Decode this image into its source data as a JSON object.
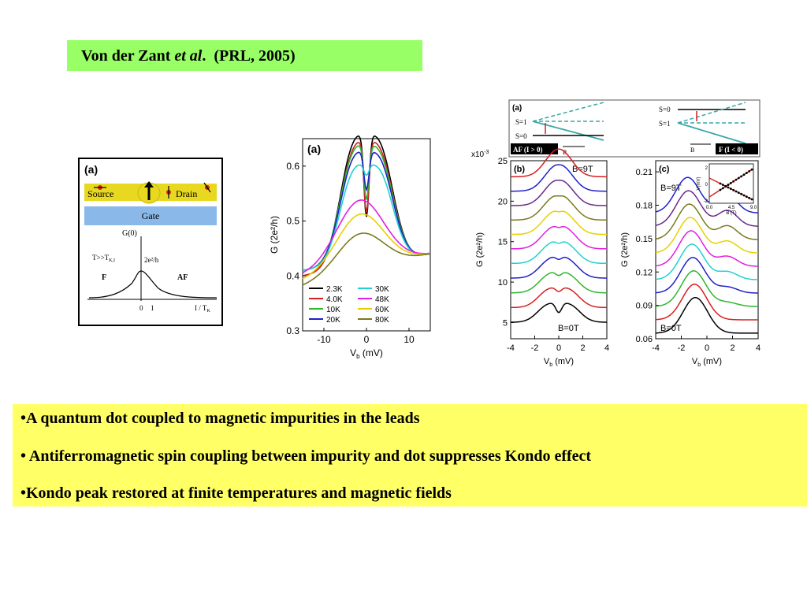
{
  "header": {
    "author": "Von der Zant",
    "etal": "et al",
    "period": ".",
    "citation": "(PRL, 2005)"
  },
  "fig1": {
    "panel": "(a)",
    "source": "Source",
    "drain": "Drain",
    "gate": "Gate",
    "g0": "G(0)",
    "cond": "T>>T",
    "cond_sub": "K,I",
    "peak": "2e²/h",
    "F": "F",
    "AF": "AF",
    "t0": "0",
    "t1": "1",
    "xlabel": "I / T",
    "xlabel_sub": "K"
  },
  "fig2": {
    "chart_data": {
      "type": "line",
      "title": "(a)",
      "xlabel": "V",
      "xlabel_sub": "b",
      "xlabel_unit": " (mV)",
      "ylabel": "G (2e²/h)",
      "xlim": [
        -15,
        15
      ],
      "ylim": [
        0.3,
        0.65
      ],
      "xticks": [
        "-10",
        "0",
        "10"
      ],
      "yticks": [
        "0.3",
        "0.4",
        "0.5",
        "0.6"
      ],
      "series": [
        {
          "name": "2.3K",
          "color": "#000000",
          "peak": 0.62,
          "dip": 0.47,
          "base": 0.4
        },
        {
          "name": "4.0K",
          "color": "#d62020",
          "peak": 0.61,
          "dip": 0.48,
          "base": 0.4
        },
        {
          "name": "10K",
          "color": "#2fb62f",
          "peak": 0.6,
          "dip": 0.5,
          "base": 0.41
        },
        {
          "name": "20K",
          "color": "#2020c8",
          "peak": 0.59,
          "dip": 0.52,
          "base": 0.41
        },
        {
          "name": "30K",
          "color": "#22d0d0",
          "peak": 0.57,
          "dip": 0.55,
          "base": 0.41
        },
        {
          "name": "48K",
          "color": "#e020e0",
          "peak": 0.54,
          "dip": 0.54,
          "base": 0.4
        },
        {
          "name": "60K",
          "color": "#e8d000",
          "peak": 0.52,
          "dip": 0.52,
          "base": 0.39
        },
        {
          "name": "80K",
          "color": "#7a7a1e",
          "peak": 0.49,
          "dip": 0.49,
          "base": 0.38
        }
      ]
    }
  },
  "fig3": {
    "schematic": {
      "panel": "(a)",
      "s1": "S=1",
      "s0": "S=0",
      "af": "AF (I > 0)",
      "f": "F (I < 0)",
      "b": "B"
    },
    "chart_data": [
      {
        "type": "line",
        "title": "(b)",
        "xlabel": "V",
        "xlabel_sub": "b",
        "xlabel_unit": " (mV)",
        "ylabel": "G (2e²/h)",
        "yexp": "x10",
        "yexp_sup": "-3",
        "xlim": [
          -4,
          4
        ],
        "ylim": [
          3,
          25
        ],
        "xticks": [
          "-4",
          "-2",
          "0",
          "2",
          "4"
        ],
        "yticks": [
          "5",
          "10",
          "15",
          "20",
          "25"
        ],
        "top_label": "B=9T",
        "bottom_label": "B=0T",
        "series": [
          {
            "color": "#000000",
            "offset": 5.0
          },
          {
            "color": "#d62020",
            "offset": 6.8
          },
          {
            "color": "#2fb62f",
            "offset": 8.6
          },
          {
            "color": "#2020c8",
            "offset": 10.4
          },
          {
            "color": "#22d0d0",
            "offset": 12.2
          },
          {
            "color": "#e020e0",
            "offset": 14.0
          },
          {
            "color": "#e8d000",
            "offset": 15.8
          },
          {
            "color": "#7a7a1e",
            "offset": 17.6
          },
          {
            "color": "#6a2a8a",
            "offset": 19.4
          },
          {
            "color": "#2020c8",
            "offset": 21.2
          },
          {
            "color": "#d62020",
            "offset": 23.0
          }
        ]
      },
      {
        "type": "line",
        "title": "(c)",
        "xlabel": "V",
        "xlabel_sub": "b",
        "xlabel_unit": " (mV)",
        "ylabel": "G (2e²/h)",
        "xlim": [
          -4,
          4
        ],
        "ylim": [
          0.06,
          0.22
        ],
        "xticks": [
          "-4",
          "-2",
          "0",
          "2",
          "4"
        ],
        "yticks": [
          "0.06",
          "0.09",
          "0.12",
          "0.15",
          "0.18",
          "0.21"
        ],
        "top_label": "B=9T",
        "bottom_label": "B=0T",
        "series": [
          {
            "color": "#000000",
            "offset": 0.065
          },
          {
            "color": "#d62020",
            "offset": 0.077
          },
          {
            "color": "#2fb62f",
            "offset": 0.089
          },
          {
            "color": "#2020c8",
            "offset": 0.101
          },
          {
            "color": "#22d0d0",
            "offset": 0.113
          },
          {
            "color": "#e020e0",
            "offset": 0.125
          },
          {
            "color": "#e8d000",
            "offset": 0.137
          },
          {
            "color": "#7a7a1e",
            "offset": 0.149
          },
          {
            "color": "#6a2a8a",
            "offset": 0.161
          },
          {
            "color": "#2020c8",
            "offset": 0.173
          }
        ],
        "inset": {
          "ylabel": "V(mV)",
          "xlabel": "B (T)",
          "xticks": [
            "0.0",
            "4.5",
            "9.0"
          ],
          "yticks": [
            "2",
            "0",
            "-2"
          ]
        }
      }
    ]
  },
  "bullets": [
    "•A quantum dot coupled to magnetic impurities in the leads",
    "• Antiferromagnetic spin coupling between impurity and dot suppresses Kondo effect",
    "•Kondo peak restored at finite temperatures and magnetic fields"
  ]
}
